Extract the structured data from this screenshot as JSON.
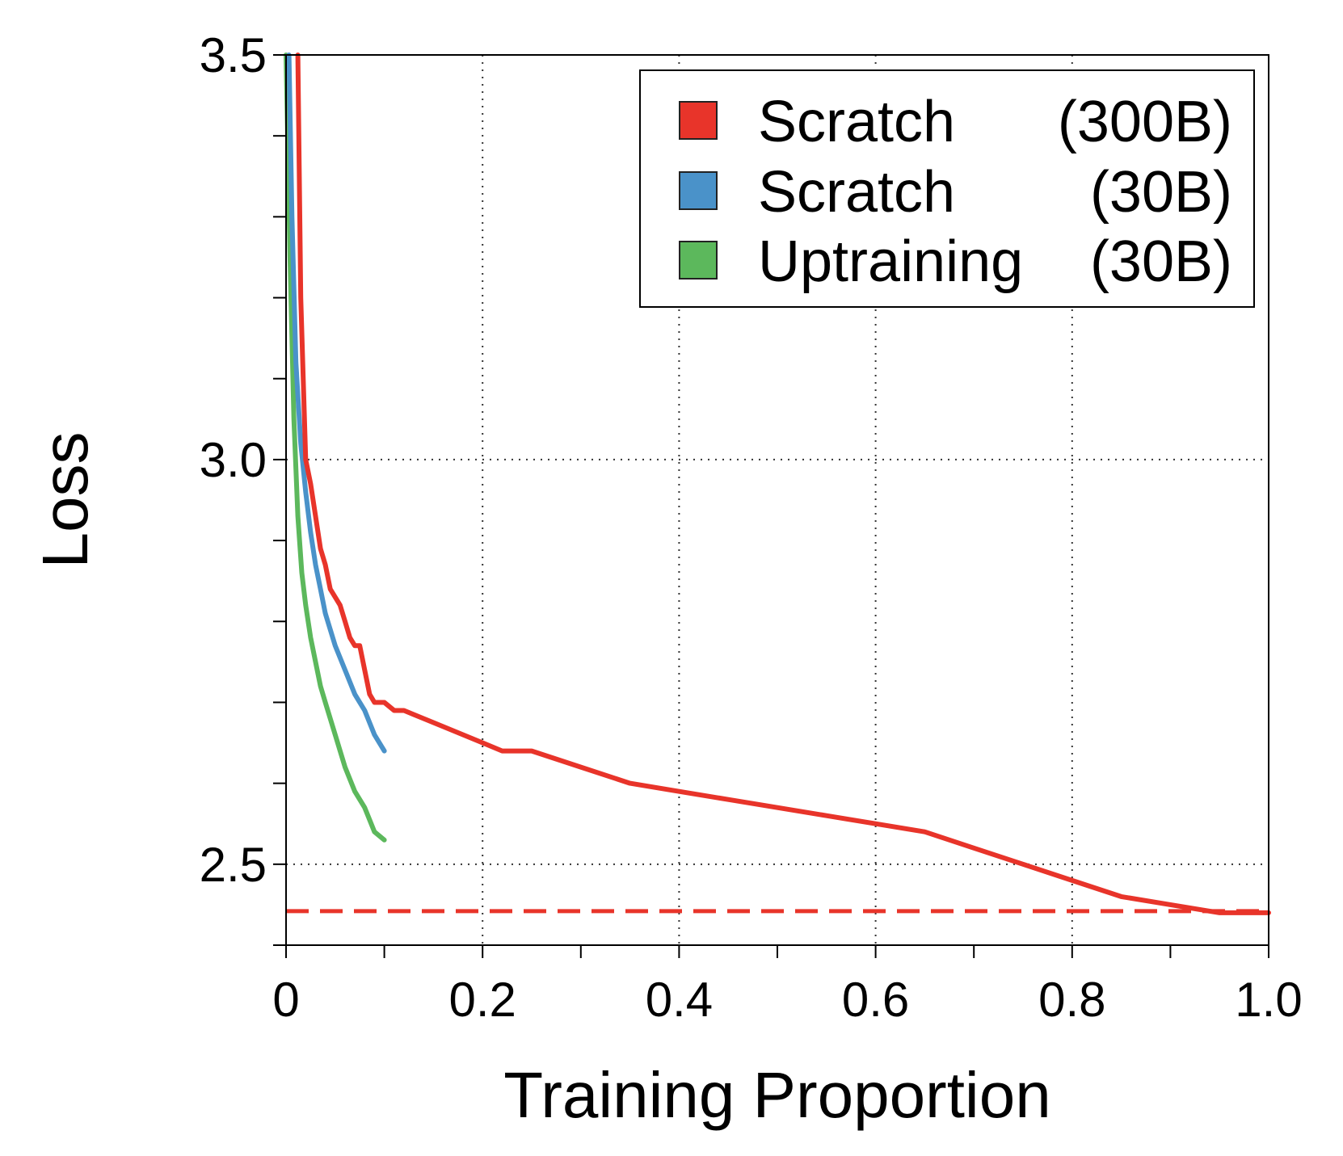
{
  "chart_data": {
    "type": "line",
    "title": "",
    "xlabel": "Training Proportion",
    "ylabel": "Loss",
    "xlim": [
      0,
      1.0
    ],
    "ylim": [
      2.4,
      3.5
    ],
    "x_ticks": [
      0,
      0.2,
      0.4,
      0.6,
      0.8,
      1.0
    ],
    "x_tick_labels": [
      "0",
      "0.2",
      "0.4",
      "0.6",
      "0.8",
      "1.0"
    ],
    "y_ticks": [
      2.5,
      3.0,
      3.5
    ],
    "y_tick_labels": [
      "2.5",
      "3.0",
      "3.5"
    ],
    "grid": "dotted",
    "legend_position": "top-right",
    "series": [
      {
        "name": "Scratch",
        "legend_suffix": "(300B)",
        "color": "#e8342a",
        "x": [
          0.012,
          0.015,
          0.02,
          0.025,
          0.03,
          0.035,
          0.04,
          0.045,
          0.05,
          0.055,
          0.06,
          0.065,
          0.07,
          0.075,
          0.08,
          0.085,
          0.09,
          0.1,
          0.11,
          0.12,
          0.14,
          0.16,
          0.18,
          0.2,
          0.22,
          0.25,
          0.3,
          0.35,
          0.4,
          0.45,
          0.5,
          0.55,
          0.6,
          0.65,
          0.7,
          0.75,
          0.8,
          0.85,
          0.9,
          0.95,
          1.0
        ],
        "values": [
          3.5,
          3.2,
          3.0,
          2.97,
          2.93,
          2.89,
          2.87,
          2.84,
          2.83,
          2.82,
          2.8,
          2.78,
          2.77,
          2.77,
          2.74,
          2.71,
          2.7,
          2.7,
          2.69,
          2.69,
          2.68,
          2.67,
          2.66,
          2.65,
          2.64,
          2.64,
          2.62,
          2.6,
          2.59,
          2.58,
          2.57,
          2.56,
          2.55,
          2.54,
          2.52,
          2.5,
          2.48,
          2.46,
          2.45,
          2.44,
          2.44
        ]
      },
      {
        "name": "Scratch",
        "legend_suffix": "(30B)",
        "color": "#4a92c9",
        "x": [
          0.003,
          0.006,
          0.01,
          0.015,
          0.02,
          0.025,
          0.03,
          0.035,
          0.04,
          0.05,
          0.06,
          0.07,
          0.08,
          0.09,
          0.1
        ],
        "values": [
          3.5,
          3.3,
          3.12,
          3.02,
          2.96,
          2.91,
          2.87,
          2.84,
          2.81,
          2.77,
          2.74,
          2.71,
          2.69,
          2.66,
          2.64
        ]
      },
      {
        "name": "Uptraining",
        "legend_suffix": "(30B)",
        "color": "#5cb85c",
        "x": [
          0.0,
          0.004,
          0.008,
          0.012,
          0.016,
          0.02,
          0.025,
          0.03,
          0.035,
          0.04,
          0.05,
          0.06,
          0.07,
          0.08,
          0.09,
          0.1
        ],
        "values": [
          3.5,
          3.25,
          3.05,
          2.93,
          2.86,
          2.82,
          2.78,
          2.75,
          2.72,
          2.7,
          2.66,
          2.62,
          2.59,
          2.57,
          2.54,
          2.53
        ]
      }
    ],
    "reference_line": {
      "y": 2.442,
      "color": "#e8342a",
      "style": "dashed"
    }
  }
}
